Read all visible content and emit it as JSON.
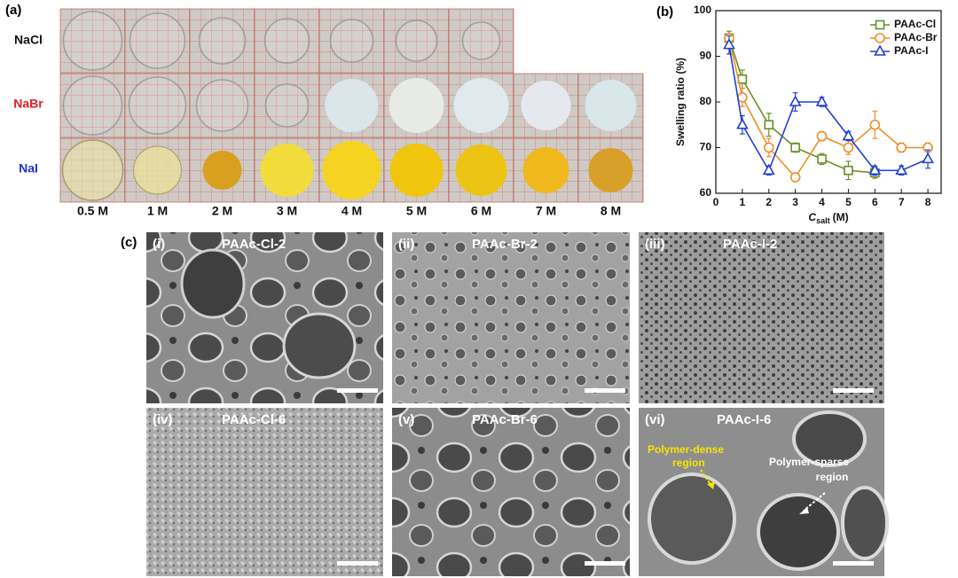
{
  "panel_a": {
    "label": "(a)",
    "rows": [
      "NaCl",
      "NaBr",
      "NaI"
    ],
    "columns": [
      "0.5 M",
      "1 M",
      "2 M",
      "3 M",
      "4 M",
      "5 M",
      "6 M",
      "7 M",
      "8 M"
    ]
  },
  "chart_data": {
    "type": "line",
    "panel_label": "(b)",
    "x_label": {
      "symbol": "C",
      "subscript": "salt",
      "unit": "(M)"
    },
    "y_label": "Swelling ratio (%)",
    "x": [
      0.5,
      1,
      2,
      3,
      4,
      5,
      6,
      7,
      8
    ],
    "xlim": [
      0,
      8.5
    ],
    "xticks": [
      0,
      1,
      2,
      3,
      4,
      5,
      6,
      7,
      8
    ],
    "ylim": [
      60,
      100
    ],
    "yticks": [
      60,
      70,
      80,
      90,
      100
    ],
    "legend": "upper right",
    "series": [
      {
        "name": "PAAc-Cl",
        "color": "#6b8e23",
        "marker": "square",
        "values": [
          94,
          85,
          75,
          70,
          67.5,
          65,
          64.5,
          null,
          null
        ],
        "errors": [
          1.5,
          2,
          2.5,
          1,
          1.2,
          2,
          1.2,
          null,
          null
        ]
      },
      {
        "name": "PAAc-Br",
        "color": "#f08c28",
        "marker": "circle",
        "values": [
          94,
          81,
          70,
          63.5,
          72.5,
          70,
          75,
          70,
          70
        ],
        "errors": [
          1,
          2,
          2,
          0.5,
          1,
          1.5,
          3,
          1,
          1
        ]
      },
      {
        "name": "PAAc-I",
        "color": "#1f3fd6",
        "marker": "triangle",
        "values": [
          92.5,
          75,
          65,
          80,
          80,
          72.5,
          65,
          65,
          67.5
        ],
        "errors": [
          2,
          2,
          1,
          2,
          1,
          1,
          1,
          1,
          2
        ]
      }
    ]
  },
  "panel_c": {
    "label": "(c)",
    "images": [
      {
        "index": "(i)",
        "title": "PAAc-Cl-2"
      },
      {
        "index": "(ii)",
        "title": "PAAc-Br-2"
      },
      {
        "index": "(iii)",
        "title": "PAAc-I-2"
      },
      {
        "index": "(iv)",
        "title": "PAAc-Cl-6"
      },
      {
        "index": "(v)",
        "title": "PAAc-Br-6"
      },
      {
        "index": "(vi)",
        "title": "PAAc-I-6"
      }
    ],
    "annotations": [
      {
        "lines": [
          "Polymer-dense",
          "region"
        ]
      },
      {
        "lines": [
          "Polymer-sparse",
          "region"
        ]
      }
    ]
  }
}
